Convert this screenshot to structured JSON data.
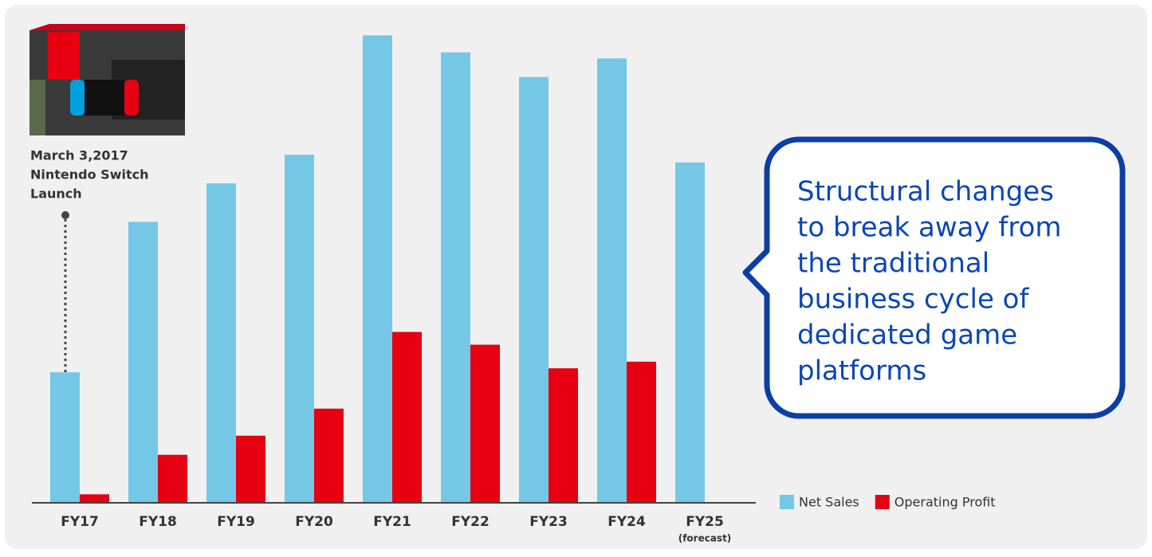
{
  "chart_data": {
    "type": "bar",
    "categories": [
      "FY17",
      "FY18",
      "FY19",
      "FY20",
      "FY21",
      "FY22",
      "FY23",
      "FY24",
      "FY25"
    ],
    "category_notes": [
      null,
      null,
      null,
      null,
      null,
      null,
      null,
      null,
      "(forecast)"
    ],
    "series": [
      {
        "name": "Net Sales",
        "color": "#74c8e6",
        "values": [
          489,
          1056,
          1201,
          1309,
          1759,
          1695,
          1602,
          1672,
          1280
        ]
      },
      {
        "name": "Operating Profit",
        "color": "#e60012",
        "values": [
          29,
          178,
          250,
          352,
          641,
          593,
          504,
          529,
          null
        ]
      }
    ],
    "ylim": [
      0,
      1760
    ],
    "annotation": [
      "March 3,2017",
      "Nintendo Switch",
      "Launch"
    ],
    "callout": [
      "Structural changes",
      "to break away from",
      "the traditional",
      "business cycle of",
      "dedicated game",
      "platforms"
    ]
  }
}
